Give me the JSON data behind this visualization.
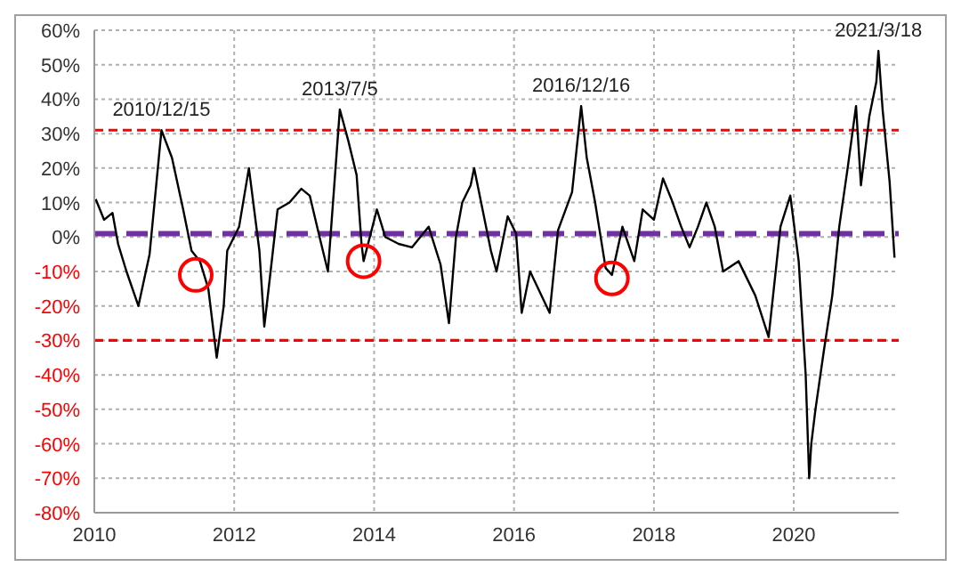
{
  "chart_data": {
    "type": "line",
    "xlim": [
      2010,
      2021.5
    ],
    "xticks": [
      2010,
      2012,
      2014,
      2016,
      2018,
      2020
    ],
    "ylim": [
      -80,
      60
    ],
    "yticks": [
      {
        "value": 60,
        "label": "60%"
      },
      {
        "value": 50,
        "label": "50%"
      },
      {
        "value": 40,
        "label": "40%"
      },
      {
        "value": 30,
        "label": "30%"
      },
      {
        "value": 20,
        "label": "20%"
      },
      {
        "value": 10,
        "label": "10%"
      },
      {
        "value": 0,
        "label": "0%"
      },
      {
        "value": -10,
        "label": "-10%"
      },
      {
        "value": -20,
        "label": "-20%"
      },
      {
        "value": -30,
        "label": "-30%"
      },
      {
        "value": -40,
        "label": "-40%"
      },
      {
        "value": -50,
        "label": "-50%"
      },
      {
        "value": -60,
        "label": "-60%"
      },
      {
        "value": -70,
        "label": "-70%"
      },
      {
        "value": -80,
        "label": "-80%"
      }
    ],
    "grid": true,
    "series": [
      {
        "color": "#000000",
        "marker": "none",
        "x": [
          2010.02,
          2010.14,
          2010.26,
          2010.34,
          2010.46,
          2010.63,
          2010.79,
          2010.96,
          2011.11,
          2011.27,
          2011.39,
          2011.51,
          2011.63,
          2011.75,
          2011.85,
          2011.9,
          2012.07,
          2012.21,
          2012.36,
          2012.43,
          2012.52,
          2012.62,
          2012.79,
          2012.96,
          2013.08,
          2013.22,
          2013.34,
          2013.51,
          2013.63,
          2013.75,
          2013.82,
          2013.85,
          2014.04,
          2014.16,
          2014.35,
          2014.54,
          2014.78,
          2014.95,
          2015.07,
          2015.17,
          2015.26,
          2015.38,
          2015.43,
          2015.67,
          2015.75,
          2015.91,
          2016.03,
          2016.11,
          2016.23,
          2016.51,
          2016.63,
          2016.83,
          2016.96,
          2017.04,
          2017.16,
          2017.31,
          2017.4,
          2017.55,
          2017.72,
          2017.84,
          2018.0,
          2018.13,
          2018.25,
          2018.39,
          2018.51,
          2018.63,
          2018.75,
          2018.87,
          2018.99,
          2019.21,
          2019.45,
          2019.64,
          2019.81,
          2019.95,
          2020.07,
          2020.17,
          2020.22,
          2020.25,
          2020.31,
          2020.43,
          2020.55,
          2020.65,
          2020.77,
          2020.89,
          2020.96,
          2021.08,
          2021.18,
          2021.21,
          2021.27,
          2021.37,
          2021.44
        ],
        "values": [
          11,
          5,
          7,
          -2,
          -10,
          -20,
          -5,
          31,
          23,
          8,
          -4,
          -7,
          -15,
          -35,
          -20,
          -4,
          3,
          20,
          -4,
          -26,
          -10,
          8,
          10,
          14,
          12,
          0,
          -10,
          37,
          28,
          18,
          -2,
          -7,
          8,
          0,
          -2,
          -3,
          3,
          -8,
          -25,
          0,
          10,
          15,
          20,
          -4,
          -10,
          6,
          1,
          -22,
          -10,
          -22,
          2,
          13,
          38,
          23,
          10,
          -9,
          -11,
          3,
          -7,
          8,
          5,
          17,
          11,
          3,
          -3,
          3,
          10,
          3,
          -10,
          -7,
          -17,
          -29,
          3,
          12,
          -7,
          -40,
          -70,
          -60,
          -50,
          -33,
          -17,
          3,
          20,
          38,
          15,
          35,
          45,
          54,
          37,
          16,
          -6
        ]
      },
      {
        "type": "scatter",
        "color": "#ff0000",
        "marker": "circle",
        "x": [
          2011.45,
          2013.85,
          2017.4
        ],
        "values": [
          -11,
          -7,
          -12
        ]
      }
    ],
    "ref_lines": [
      {
        "axis": "y",
        "value": 31,
        "color": "#ff0000",
        "line_style": "dashed"
      },
      {
        "axis": "y",
        "value": -30,
        "color": "#ff0000",
        "line_style": "dashed"
      },
      {
        "axis": "y",
        "value": 1,
        "color": "#7030a0",
        "line_style": "dashed"
      }
    ],
    "annotations": [
      {
        "text": "2010/12/15",
        "x": 2010.96,
        "y": 31
      },
      {
        "text": "2013/7/5",
        "x": 2013.51,
        "y": 37
      },
      {
        "text": "2016/12/16",
        "x": 2016.96,
        "y": 38
      },
      {
        "text": "2021/3/18",
        "x": 2021.21,
        "y": 54
      }
    ]
  }
}
